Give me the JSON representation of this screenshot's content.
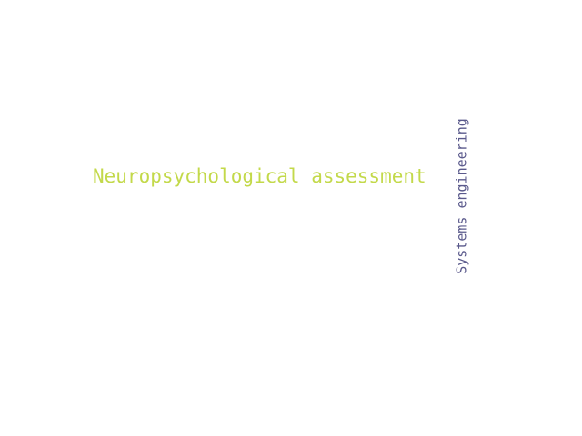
{
  "words": [
    {
      "text": "Neuropsychological assessment",
      "color": "#c3d94a",
      "orientation": "horizontal"
    },
    {
      "text": "Systems engineering",
      "color": "#5b5a8c",
      "orientation": "vertical"
    }
  ]
}
